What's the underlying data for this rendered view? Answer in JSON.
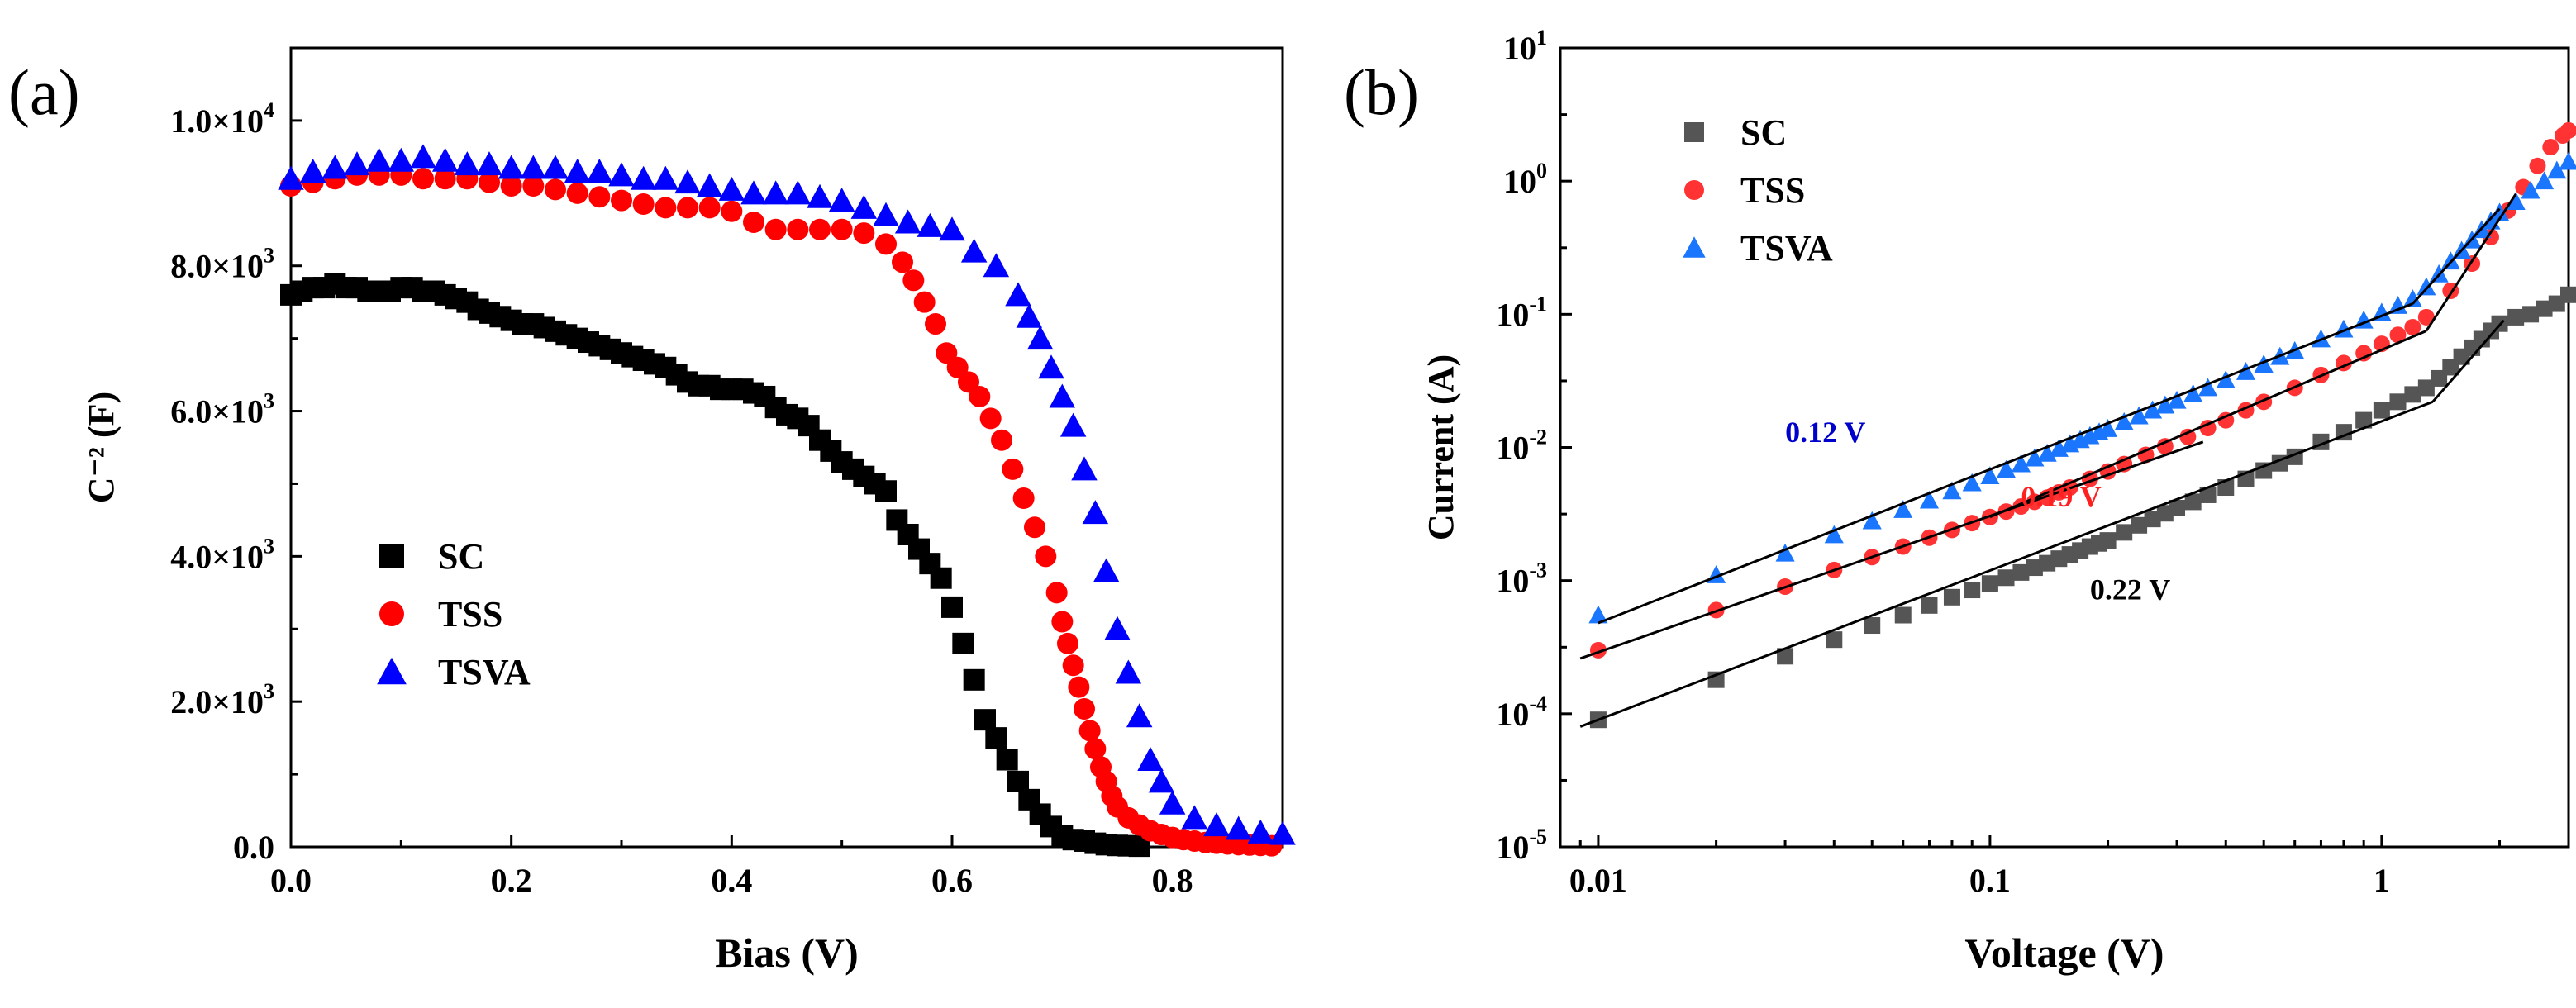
{
  "chart_data": [
    {
      "type": "scatter",
      "panel_label": "(a)",
      "xlabel": "Bias (V)",
      "ylabel": "C⁻² (F)",
      "xlim": [
        0,
        0.9
      ],
      "ylim": [
        0,
        11000
      ],
      "xticks": [
        "0.0",
        "0.2",
        "0.4",
        "0.6",
        "0.8"
      ],
      "yticks": [
        {
          "value": 0,
          "label": "0.0"
        },
        {
          "value": 2000,
          "mant": "2.0×10",
          "exp": "3"
        },
        {
          "value": 4000,
          "mant": "4.0×10",
          "exp": "3"
        },
        {
          "value": 6000,
          "mant": "6.0×10",
          "exp": "3"
        },
        {
          "value": 8000,
          "mant": "8.0×10",
          "exp": "3"
        },
        {
          "value": 10000,
          "mant": "1.0×10",
          "exp": "4"
        }
      ],
      "legend": "lower-left",
      "series": [
        {
          "name": "SC",
          "color": "#000000",
          "marker": "square",
          "x": [
            0,
            0.01,
            0.02,
            0.03,
            0.04,
            0.05,
            0.06,
            0.07,
            0.08,
            0.09,
            0.1,
            0.11,
            0.12,
            0.13,
            0.14,
            0.15,
            0.16,
            0.17,
            0.18,
            0.19,
            0.2,
            0.21,
            0.22,
            0.23,
            0.24,
            0.25,
            0.26,
            0.27,
            0.28,
            0.29,
            0.3,
            0.31,
            0.32,
            0.33,
            0.34,
            0.35,
            0.36,
            0.37,
            0.38,
            0.39,
            0.4,
            0.41,
            0.42,
            0.43,
            0.44,
            0.45,
            0.46,
            0.47,
            0.48,
            0.49,
            0.5,
            0.51,
            0.52,
            0.53,
            0.54,
            0.55,
            0.56,
            0.57,
            0.58,
            0.59,
            0.6,
            0.61,
            0.62,
            0.63,
            0.64,
            0.65,
            0.66,
            0.67,
            0.68,
            0.69,
            0.7,
            0.71,
            0.72,
            0.73,
            0.74,
            0.75,
            0.76,
            0.77
          ],
          "y": [
            7600,
            7650,
            7700,
            7700,
            7750,
            7700,
            7700,
            7650,
            7650,
            7650,
            7700,
            7700,
            7650,
            7650,
            7600,
            7550,
            7500,
            7400,
            7350,
            7300,
            7250,
            7200,
            7200,
            7150,
            7100,
            7050,
            7000,
            6950,
            6900,
            6850,
            6800,
            6750,
            6700,
            6650,
            6600,
            6500,
            6400,
            6350,
            6350,
            6300,
            6300,
            6300,
            6250,
            6200,
            6050,
            5950,
            5900,
            5800,
            5600,
            5450,
            5300,
            5200,
            5100,
            5000,
            4900,
            4500,
            4300,
            4100,
            3900,
            3700,
            3300,
            2800,
            2300,
            1750,
            1500,
            1200,
            900,
            650,
            450,
            280,
            150,
            100,
            80,
            50,
            30,
            20,
            15,
            10
          ]
        },
        {
          "name": "TSS",
          "color": "#ff0000",
          "marker": "circle",
          "x": [
            0,
            0.02,
            0.04,
            0.06,
            0.08,
            0.1,
            0.12,
            0.14,
            0.16,
            0.18,
            0.2,
            0.22,
            0.24,
            0.26,
            0.28,
            0.3,
            0.32,
            0.34,
            0.36,
            0.38,
            0.4,
            0.42,
            0.44,
            0.46,
            0.48,
            0.5,
            0.52,
            0.54,
            0.555,
            0.565,
            0.575,
            0.585,
            0.595,
            0.605,
            0.615,
            0.625,
            0.635,
            0.645,
            0.655,
            0.665,
            0.675,
            0.685,
            0.695,
            0.7,
            0.705,
            0.71,
            0.715,
            0.72,
            0.725,
            0.73,
            0.735,
            0.74,
            0.745,
            0.75,
            0.76,
            0.77,
            0.78,
            0.79,
            0.8,
            0.81,
            0.82,
            0.83,
            0.84,
            0.85,
            0.86,
            0.87,
            0.88,
            0.89
          ],
          "y": [
            9100,
            9150,
            9200,
            9250,
            9250,
            9250,
            9200,
            9200,
            9200,
            9150,
            9100,
            9100,
            9050,
            9000,
            8950,
            8900,
            8850,
            8800,
            8800,
            8800,
            8750,
            8600,
            8500,
            8500,
            8500,
            8500,
            8450,
            8300,
            8050,
            7800,
            7500,
            7200,
            6800,
            6600,
            6400,
            6200,
            5900,
            5600,
            5200,
            4800,
            4400,
            4000,
            3500,
            3100,
            2800,
            2500,
            2200,
            1900,
            1600,
            1350,
            1100,
            900,
            700,
            550,
            400,
            300,
            220,
            170,
            130,
            100,
            80,
            60,
            50,
            40,
            30,
            25,
            20,
            15
          ]
        },
        {
          "name": "TSVA",
          "color": "#0000ff",
          "marker": "triangle",
          "x": [
            0,
            0.02,
            0.04,
            0.06,
            0.08,
            0.1,
            0.12,
            0.14,
            0.16,
            0.18,
            0.2,
            0.22,
            0.24,
            0.26,
            0.28,
            0.3,
            0.32,
            0.34,
            0.36,
            0.38,
            0.4,
            0.42,
            0.44,
            0.46,
            0.48,
            0.5,
            0.52,
            0.54,
            0.56,
            0.58,
            0.6,
            0.62,
            0.64,
            0.66,
            0.67,
            0.68,
            0.69,
            0.7,
            0.71,
            0.72,
            0.73,
            0.74,
            0.75,
            0.76,
            0.77,
            0.78,
            0.79,
            0.8,
            0.82,
            0.84,
            0.86,
            0.88,
            0.9
          ],
          "y": [
            9200,
            9300,
            9350,
            9400,
            9450,
            9450,
            9500,
            9450,
            9400,
            9400,
            9350,
            9350,
            9350,
            9300,
            9300,
            9250,
            9200,
            9200,
            9150,
            9100,
            9050,
            9000,
            9000,
            9000,
            8950,
            8900,
            8800,
            8700,
            8600,
            8550,
            8500,
            8200,
            8000,
            7600,
            7300,
            7000,
            6600,
            6200,
            5800,
            5200,
            4600,
            3800,
            3000,
            2400,
            1800,
            1200,
            900,
            600,
            400,
            300,
            250,
            200,
            180
          ]
        }
      ]
    },
    {
      "type": "scatter",
      "panel_label": "(b)",
      "xlabel": "Voltage (V)",
      "ylabel": "Current (A)",
      "xscale": "log",
      "yscale": "log",
      "xlim": [
        0.008,
        3
      ],
      "ylim": [
        1e-05,
        10
      ],
      "xticks": [
        {
          "value": 0.01,
          "label": "0.01"
        },
        {
          "value": 0.1,
          "label": "0.1"
        },
        {
          "value": 1,
          "label": "1"
        }
      ],
      "yticks": [
        {
          "value": 1e-05,
          "mant": "10",
          "exp": "-5"
        },
        {
          "value": 0.0001,
          "mant": "10",
          "exp": "-4"
        },
        {
          "value": 0.001,
          "mant": "10",
          "exp": "-3"
        },
        {
          "value": 0.01,
          "mant": "10",
          "exp": "-2"
        },
        {
          "value": 0.1,
          "mant": "10",
          "exp": "-1"
        },
        {
          "value": 1,
          "mant": "10",
          "exp": "0"
        },
        {
          "value": 10,
          "mant": "10",
          "exp": "1"
        }
      ],
      "legend": "top-left",
      "series": [
        {
          "name": "SC",
          "color": "#555555",
          "marker": "square",
          "x": [
            0.01,
            0.02,
            0.03,
            0.04,
            0.05,
            0.06,
            0.07,
            0.08,
            0.09,
            0.1,
            0.11,
            0.12,
            0.13,
            0.14,
            0.15,
            0.16,
            0.17,
            0.18,
            0.19,
            0.2,
            0.22,
            0.24,
            0.26,
            0.28,
            0.3,
            0.33,
            0.36,
            0.4,
            0.45,
            0.5,
            0.55,
            0.6,
            0.7,
            0.8,
            0.9,
            1.0,
            1.1,
            1.2,
            1.3,
            1.4,
            1.5,
            1.6,
            1.7,
            1.8,
            1.9,
            2.0,
            2.2,
            2.4,
            2.6,
            2.8,
            3.0
          ],
          "y": [
            9e-05,
            0.00018,
            0.00027,
            0.00036,
            0.00046,
            0.00055,
            0.00065,
            0.00075,
            0.00085,
            0.00095,
            0.00105,
            0.00115,
            0.00125,
            0.00135,
            0.00146,
            0.00157,
            0.00168,
            0.0018,
            0.0019,
            0.002,
            0.0023,
            0.0026,
            0.0029,
            0.0032,
            0.0035,
            0.0039,
            0.0044,
            0.005,
            0.0058,
            0.0067,
            0.0076,
            0.0085,
            0.011,
            0.013,
            0.016,
            0.019,
            0.022,
            0.025,
            0.028,
            0.033,
            0.04,
            0.048,
            0.056,
            0.065,
            0.075,
            0.085,
            0.095,
            0.1,
            0.11,
            0.12,
            0.14
          ]
        },
        {
          "name": "TSS",
          "color": "#ff3333",
          "marker": "circle",
          "x": [
            0.01,
            0.02,
            0.03,
            0.04,
            0.05,
            0.06,
            0.07,
            0.08,
            0.09,
            0.1,
            0.11,
            0.12,
            0.13,
            0.14,
            0.15,
            0.16,
            0.18,
            0.2,
            0.22,
            0.25,
            0.28,
            0.32,
            0.36,
            0.4,
            0.45,
            0.5,
            0.6,
            0.7,
            0.8,
            0.9,
            1.0,
            1.1,
            1.2,
            1.3,
            1.5,
            1.7,
            1.9,
            2.1,
            2.3,
            2.5,
            2.7,
            2.9,
            3.0
          ],
          "y": [
            0.0003,
            0.0006,
            0.0009,
            0.0012,
            0.0015,
            0.0018,
            0.0021,
            0.0024,
            0.0027,
            0.003,
            0.0033,
            0.0036,
            0.0039,
            0.0042,
            0.0046,
            0.005,
            0.0058,
            0.0066,
            0.0075,
            0.0088,
            0.0102,
            0.012,
            0.014,
            0.016,
            0.019,
            0.022,
            0.028,
            0.035,
            0.043,
            0.051,
            0.06,
            0.07,
            0.08,
            0.095,
            0.15,
            0.24,
            0.38,
            0.6,
            0.9,
            1.3,
            1.8,
            2.2,
            2.4
          ]
        },
        {
          "name": "TSVA",
          "color": "#1a75ff",
          "marker": "triangle",
          "x": [
            0.01,
            0.02,
            0.03,
            0.04,
            0.05,
            0.06,
            0.07,
            0.08,
            0.09,
            0.1,
            0.11,
            0.12,
            0.13,
            0.14,
            0.15,
            0.16,
            0.17,
            0.18,
            0.19,
            0.2,
            0.22,
            0.24,
            0.26,
            0.28,
            0.3,
            0.33,
            0.36,
            0.4,
            0.45,
            0.5,
            0.55,
            0.6,
            0.7,
            0.8,
            0.9,
            1.0,
            1.1,
            1.2,
            1.3,
            1.4,
            1.5,
            1.6,
            1.7,
            1.8,
            1.9,
            2.0,
            2.2,
            2.4,
            2.6,
            2.8,
            3.0
          ],
          "y": [
            0.00055,
            0.0011,
            0.0016,
            0.0022,
            0.0028,
            0.0034,
            0.004,
            0.0047,
            0.0054,
            0.0061,
            0.0068,
            0.0075,
            0.0083,
            0.009,
            0.0098,
            0.0106,
            0.0114,
            0.0122,
            0.013,
            0.0138,
            0.0155,
            0.0172,
            0.019,
            0.0207,
            0.0225,
            0.0252,
            0.028,
            0.032,
            0.037,
            0.042,
            0.048,
            0.053,
            0.065,
            0.077,
            0.09,
            0.103,
            0.116,
            0.13,
            0.16,
            0.2,
            0.25,
            0.3,
            0.36,
            0.43,
            0.5,
            0.58,
            0.7,
            0.85,
            1.0,
            1.2,
            1.4
          ]
        }
      ],
      "fit_lines": [
        {
          "color": "#000000",
          "points": [
            [
              0.009,
              8e-05
            ],
            [
              1.35,
              0.022
            ]
          ]
        },
        {
          "color": "#000000",
          "points": [
            [
              1.35,
              0.022
            ],
            [
              2.05,
              0.09
            ]
          ]
        },
        {
          "color": "#000000",
          "points": [
            [
              0.009,
              0.00026
            ],
            [
              0.35,
              0.011
            ]
          ]
        },
        {
          "color": "#000000",
          "points": [
            [
              0.1,
              0.003
            ],
            [
              1.3,
              0.075
            ]
          ]
        },
        {
          "color": "#000000",
          "points": [
            [
              1.3,
              0.075
            ],
            [
              2.2,
              0.8
            ]
          ]
        },
        {
          "color": "#000000",
          "points": [
            [
              0.01,
              0.00048
            ],
            [
              1.2,
              0.12
            ]
          ]
        },
        {
          "color": "#000000",
          "points": [
            [
              1.2,
              0.12
            ],
            [
              2.0,
              0.62
            ]
          ]
        }
      ],
      "annotations": [
        {
          "text": "0.12 V",
          "color": "#0000cc",
          "x": 0.03,
          "y": 0.011
        },
        {
          "text": "0.19 V",
          "color": "#ff2020",
          "x": 0.12,
          "y": 0.0036
        },
        {
          "text": "0.22 V",
          "color": "#000000",
          "x": 0.18,
          "y": 0.00072
        }
      ]
    }
  ]
}
